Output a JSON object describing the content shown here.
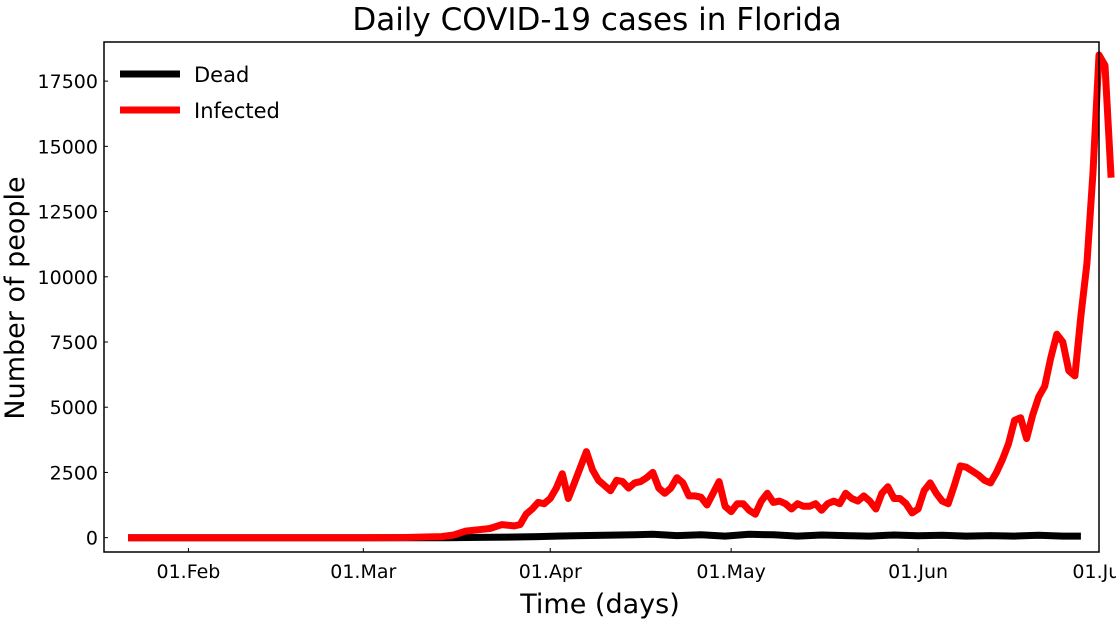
{
  "chart_data": {
    "type": "line",
    "title": "Daily COVID-19 cases in Florida",
    "xlabel": "Time (days)",
    "ylabel": "Number of people",
    "x_ticks": [
      {
        "date": "2020-02-01",
        "label": "01.Feb"
      },
      {
        "date": "2020-03-01",
        "label": "01.Mar"
      },
      {
        "date": "2020-04-01",
        "label": "01.Apr"
      },
      {
        "date": "2020-05-01",
        "label": "01.May"
      },
      {
        "date": "2020-06-01",
        "label": "01.Jun"
      },
      {
        "date": "2020-07-01",
        "label": "01.Jul"
      }
    ],
    "y_ticks": [
      {
        "value": 0,
        "label": "0"
      },
      {
        "value": 2500,
        "label": "2500"
      },
      {
        "value": 5000,
        "label": "5000"
      },
      {
        "value": 7500,
        "label": "7500"
      },
      {
        "value": 10000,
        "label": "10000"
      },
      {
        "value": 12500,
        "label": "12500"
      },
      {
        "value": 15000,
        "label": "15000"
      },
      {
        "value": 17500,
        "label": "17500"
      }
    ],
    "xlim": [
      "2020-01-18",
      "2020-07-01"
    ],
    "ylim": [
      -550,
      19000
    ],
    "grid": false,
    "legend_position": "top-left",
    "series": [
      {
        "name": "Dead",
        "color": "#000000",
        "points": [
          [
            "2020-01-22",
            0
          ],
          [
            "2020-03-15",
            0
          ],
          [
            "2020-03-20",
            10
          ],
          [
            "2020-03-25",
            20
          ],
          [
            "2020-03-30",
            40
          ],
          [
            "2020-04-02",
            60
          ],
          [
            "2020-04-05",
            70
          ],
          [
            "2020-04-10",
            90
          ],
          [
            "2020-04-15",
            110
          ],
          [
            "2020-04-18",
            130
          ],
          [
            "2020-04-22",
            80
          ],
          [
            "2020-04-26",
            110
          ],
          [
            "2020-04-30",
            60
          ],
          [
            "2020-05-04",
            130
          ],
          [
            "2020-05-08",
            110
          ],
          [
            "2020-05-12",
            60
          ],
          [
            "2020-05-16",
            100
          ],
          [
            "2020-05-20",
            80
          ],
          [
            "2020-05-24",
            60
          ],
          [
            "2020-05-28",
            100
          ],
          [
            "2020-06-01",
            70
          ],
          [
            "2020-06-05",
            90
          ],
          [
            "2020-06-09",
            60
          ],
          [
            "2020-06-13",
            80
          ],
          [
            "2020-06-17",
            60
          ],
          [
            "2020-06-21",
            90
          ],
          [
            "2020-06-25",
            60
          ],
          [
            "2020-06-28",
            60
          ]
        ]
      },
      {
        "name": "Infected",
        "color": "#ff0000",
        "points": [
          [
            "2020-01-22",
            0
          ],
          [
            "2020-03-01",
            0
          ],
          [
            "2020-03-08",
            5
          ],
          [
            "2020-03-12",
            30
          ],
          [
            "2020-03-14",
            40
          ],
          [
            "2020-03-16",
            100
          ],
          [
            "2020-03-18",
            250
          ],
          [
            "2020-03-20",
            300
          ],
          [
            "2020-03-22",
            350
          ],
          [
            "2020-03-24",
            500
          ],
          [
            "2020-03-26",
            450
          ],
          [
            "2020-03-27",
            500
          ],
          [
            "2020-03-28",
            900
          ],
          [
            "2020-03-29",
            1100
          ],
          [
            "2020-03-30",
            1350
          ],
          [
            "2020-03-31",
            1300
          ],
          [
            "2020-04-01",
            1500
          ],
          [
            "2020-04-02",
            1900
          ],
          [
            "2020-04-03",
            2450
          ],
          [
            "2020-04-04",
            1500
          ],
          [
            "2020-04-05",
            2100
          ],
          [
            "2020-04-06",
            2700
          ],
          [
            "2020-04-07",
            3300
          ],
          [
            "2020-04-08",
            2600
          ],
          [
            "2020-04-09",
            2200
          ],
          [
            "2020-04-10",
            2000
          ],
          [
            "2020-04-11",
            1800
          ],
          [
            "2020-04-12",
            2200
          ],
          [
            "2020-04-13",
            2150
          ],
          [
            "2020-04-14",
            1900
          ],
          [
            "2020-04-15",
            2100
          ],
          [
            "2020-04-16",
            2150
          ],
          [
            "2020-04-17",
            2300
          ],
          [
            "2020-04-18",
            2500
          ],
          [
            "2020-04-19",
            1900
          ],
          [
            "2020-04-20",
            1700
          ],
          [
            "2020-04-21",
            1900
          ],
          [
            "2020-04-22",
            2300
          ],
          [
            "2020-04-23",
            2100
          ],
          [
            "2020-04-24",
            1600
          ],
          [
            "2020-04-25",
            1600
          ],
          [
            "2020-04-26",
            1550
          ],
          [
            "2020-04-27",
            1250
          ],
          [
            "2020-04-28",
            1700
          ],
          [
            "2020-04-29",
            2150
          ],
          [
            "2020-04-30",
            1200
          ],
          [
            "2020-05-01",
            1000
          ],
          [
            "2020-05-02",
            1300
          ],
          [
            "2020-05-03",
            1300
          ],
          [
            "2020-05-04",
            1050
          ],
          [
            "2020-05-05",
            900
          ],
          [
            "2020-05-06",
            1400
          ],
          [
            "2020-05-07",
            1700
          ],
          [
            "2020-05-08",
            1350
          ],
          [
            "2020-05-09",
            1400
          ],
          [
            "2020-05-10",
            1300
          ],
          [
            "2020-05-11",
            1100
          ],
          [
            "2020-05-12",
            1300
          ],
          [
            "2020-05-13",
            1200
          ],
          [
            "2020-05-14",
            1200
          ],
          [
            "2020-05-15",
            1300
          ],
          [
            "2020-05-16",
            1050
          ],
          [
            "2020-05-17",
            1300
          ],
          [
            "2020-05-18",
            1400
          ],
          [
            "2020-05-19",
            1300
          ],
          [
            "2020-05-20",
            1700
          ],
          [
            "2020-05-21",
            1500
          ],
          [
            "2020-05-22",
            1400
          ],
          [
            "2020-05-23",
            1600
          ],
          [
            "2020-05-24",
            1400
          ],
          [
            "2020-05-25",
            1100
          ],
          [
            "2020-05-26",
            1700
          ],
          [
            "2020-05-27",
            1950
          ],
          [
            "2020-05-28",
            1500
          ],
          [
            "2020-05-29",
            1500
          ],
          [
            "2020-05-30",
            1300
          ],
          [
            "2020-05-31",
            950
          ],
          [
            "2020-06-01",
            1100
          ],
          [
            "2020-06-02",
            1800
          ],
          [
            "2020-06-03",
            2100
          ],
          [
            "2020-06-04",
            1700
          ],
          [
            "2020-06-05",
            1400
          ],
          [
            "2020-06-06",
            1300
          ],
          [
            "2020-06-07",
            2000
          ],
          [
            "2020-06-08",
            2750
          ],
          [
            "2020-06-09",
            2700
          ],
          [
            "2020-06-10",
            2550
          ],
          [
            "2020-06-11",
            2400
          ],
          [
            "2020-06-12",
            2200
          ],
          [
            "2020-06-13",
            2100
          ],
          [
            "2020-06-14",
            2500
          ],
          [
            "2020-06-15",
            3000
          ],
          [
            "2020-06-16",
            3600
          ],
          [
            "2020-06-17",
            4500
          ],
          [
            "2020-06-18",
            4600
          ],
          [
            "2020-06-19",
            3800
          ],
          [
            "2020-06-20",
            4700
          ],
          [
            "2020-06-21",
            5400
          ],
          [
            "2020-06-22",
            5800
          ],
          [
            "2020-06-23",
            6900
          ],
          [
            "2020-06-24",
            7800
          ],
          [
            "2020-06-25",
            7500
          ],
          [
            "2020-06-26",
            6400
          ],
          [
            "2020-06-27",
            6200
          ],
          [
            "2020-06-28",
            8500
          ],
          [
            "2020-06-29",
            10500
          ],
          [
            "2020-06-30",
            14000
          ],
          [
            "2020-07-01",
            18500
          ],
          [
            "2020-07-02",
            18100
          ],
          [
            "2020-07-03",
            13800
          ]
        ]
      }
    ]
  }
}
